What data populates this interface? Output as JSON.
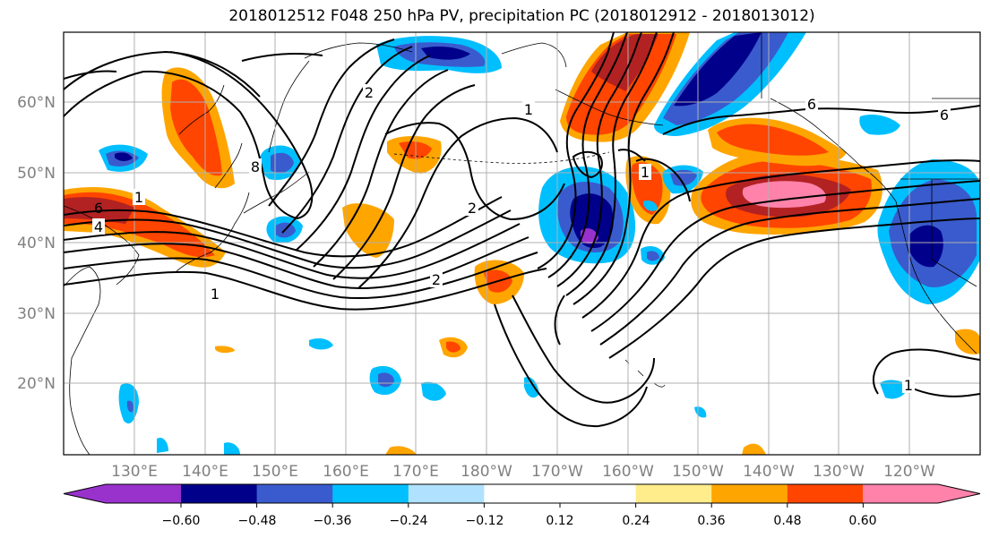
{
  "title": "2018012512 F048 250 hPa PV, precipitation PC (2018012912 - 2018013012)",
  "map": {
    "lon_labels": [
      "130°E",
      "140°E",
      "150°E",
      "160°E",
      "170°E",
      "180°W",
      "170°W",
      "160°W",
      "150°W",
      "140°W",
      "130°W",
      "120°W"
    ],
    "lat_labels": [
      "20°N",
      "30°N",
      "40°N",
      "50°N",
      "60°N"
    ],
    "contour_labels": [
      "1",
      "1",
      "2",
      "2",
      "1",
      "6",
      "6",
      "6",
      "4",
      "8",
      "2",
      "1",
      "1"
    ]
  },
  "colorbar": {
    "colors": [
      "#9932cc",
      "#00008b",
      "#3a5bcd",
      "#00bfff",
      "#b0e2ff",
      "#ffffff",
      "#ffffff",
      "#ffec8b",
      "#ffa500",
      "#ff4500",
      "#b22222",
      "#ff82ab"
    ],
    "tick_labels": [
      "−0.60",
      "−0.48",
      "−0.36",
      "−0.24",
      "−0.12",
      "0.12",
      "0.24",
      "0.36",
      "0.48",
      "0.60"
    ]
  }
}
